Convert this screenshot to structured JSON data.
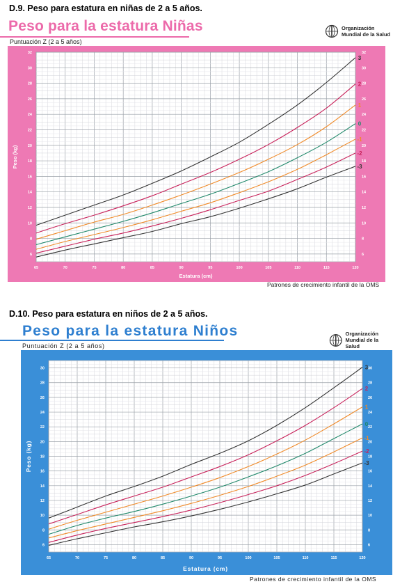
{
  "girls": {
    "heading": "D.9. Peso para estatura en niñas de 2 a 5 años.",
    "title": "Peso para la estatura Niñas",
    "subtitle": "Puntuación Z  (2 a 5 años)",
    "source": "Patrones de crecimiento infantil de la OMS",
    "colors": {
      "panel": "#ee79b4",
      "title": "#ec6aaa"
    }
  },
  "boys": {
    "heading": "D.10. Peso para estatura en niños de 2 a 5 años.",
    "title": "Peso para la estatura Niños",
    "subtitle": "Puntuación Z (2 a 5 años)",
    "source": "Patrones de crecimiento infantil de la OMS",
    "colors": {
      "panel": "#3a8fd8",
      "title": "#2e7fd0"
    }
  },
  "who": {
    "line1": "Organización",
    "line2": "Mundial de la Salud"
  },
  "chart_data": [
    {
      "type": "line",
      "title": "Peso para la estatura Niñas",
      "xlabel": "Estatura (cm)",
      "ylabel": "Peso (kg)",
      "xlim": [
        65,
        120
      ],
      "ylim": [
        5,
        32
      ],
      "xticks": [
        65,
        70,
        75,
        80,
        85,
        90,
        95,
        100,
        105,
        110,
        115,
        120
      ],
      "yticks": [
        6,
        8,
        10,
        12,
        14,
        16,
        18,
        20,
        22,
        24,
        26,
        28,
        30,
        32
      ],
      "x": [
        65,
        70,
        75,
        80,
        85,
        90,
        95,
        100,
        105,
        110,
        115,
        120
      ],
      "grid": true,
      "series": [
        {
          "name": "3",
          "color": "#333333",
          "values": [
            9.7,
            11.0,
            12.3,
            13.6,
            15.1,
            16.7,
            18.5,
            20.4,
            22.7,
            25.2,
            28.1,
            31.3
          ]
        },
        {
          "name": "2",
          "color": "#c8215a",
          "values": [
            8.7,
            9.9,
            11.0,
            12.2,
            13.5,
            15.0,
            16.5,
            18.2,
            20.1,
            22.3,
            24.8,
            27.9
          ]
        },
        {
          "name": "1",
          "color": "#f08a28",
          "values": [
            7.9,
            9.0,
            10.1,
            11.1,
            12.3,
            13.6,
            15.0,
            16.5,
            18.2,
            20.1,
            22.4,
            25.2
          ]
        },
        {
          "name": "0",
          "color": "#20886a",
          "values": [
            7.2,
            8.2,
            9.2,
            10.2,
            11.3,
            12.5,
            13.7,
            15.1,
            16.6,
            18.4,
            20.4,
            22.8
          ]
        },
        {
          "name": "-1",
          "color": "#f08a28",
          "values": [
            6.6,
            7.6,
            8.5,
            9.4,
            10.4,
            11.5,
            12.6,
            13.9,
            15.3,
            16.9,
            18.8,
            20.8
          ]
        },
        {
          "name": "-2",
          "color": "#c8215a",
          "values": [
            6.1,
            7.0,
            7.9,
            8.7,
            9.6,
            10.6,
            11.7,
            12.9,
            14.1,
            15.6,
            17.2,
            19.0
          ]
        },
        {
          "name": "-3",
          "color": "#333333",
          "values": [
            5.6,
            6.5,
            7.3,
            8.1,
            8.9,
            9.9,
            10.8,
            11.9,
            13.1,
            14.4,
            15.9,
            17.3
          ]
        }
      ]
    },
    {
      "type": "line",
      "title": "Peso para la estatura Niños",
      "xlabel": "Estatura (cm)",
      "ylabel": "Peso (kg)",
      "xlim": [
        65,
        120
      ],
      "ylim": [
        5,
        31
      ],
      "xticks": [
        65,
        70,
        75,
        80,
        85,
        90,
        95,
        100,
        105,
        110,
        115,
        120
      ],
      "yticks": [
        6,
        8,
        10,
        12,
        14,
        16,
        18,
        20,
        22,
        24,
        26,
        28,
        30
      ],
      "x": [
        65,
        70,
        75,
        80,
        85,
        90,
        95,
        100,
        105,
        110,
        115,
        120
      ],
      "grid": true,
      "series": [
        {
          "name": "3",
          "color": "#333333",
          "values": [
            9.6,
            11.1,
            12.6,
            13.9,
            15.3,
            16.9,
            18.4,
            20.1,
            22.2,
            24.6,
            27.3,
            30.1
          ]
        },
        {
          "name": "2",
          "color": "#c8215a",
          "values": [
            8.8,
            10.1,
            11.4,
            12.6,
            13.8,
            15.2,
            16.6,
            18.2,
            20.1,
            22.2,
            24.6,
            27.2
          ]
        },
        {
          "name": "1",
          "color": "#f08a28",
          "values": [
            8.1,
            9.3,
            10.4,
            11.5,
            12.6,
            13.8,
            15.1,
            16.6,
            18.3,
            20.2,
            22.4,
            24.7
          ]
        },
        {
          "name": "0",
          "color": "#20886a",
          "values": [
            7.4,
            8.6,
            9.6,
            10.5,
            11.5,
            12.6,
            13.8,
            15.2,
            16.7,
            18.4,
            20.4,
            22.4
          ]
        },
        {
          "name": "-1",
          "color": "#f08a28",
          "values": [
            6.9,
            7.9,
            8.8,
            9.7,
            10.6,
            11.6,
            12.7,
            13.9,
            15.3,
            16.8,
            18.6,
            20.5
          ]
        },
        {
          "name": "-2",
          "color": "#c8215a",
          "values": [
            6.3,
            7.3,
            8.2,
            9.0,
            9.8,
            10.7,
            11.7,
            12.8,
            14.0,
            15.4,
            17.0,
            18.7
          ]
        },
        {
          "name": "-3",
          "color": "#333333",
          "values": [
            5.9,
            6.8,
            7.6,
            8.4,
            9.1,
            9.9,
            10.8,
            11.8,
            12.9,
            14.1,
            15.6,
            17.1
          ]
        }
      ]
    }
  ]
}
